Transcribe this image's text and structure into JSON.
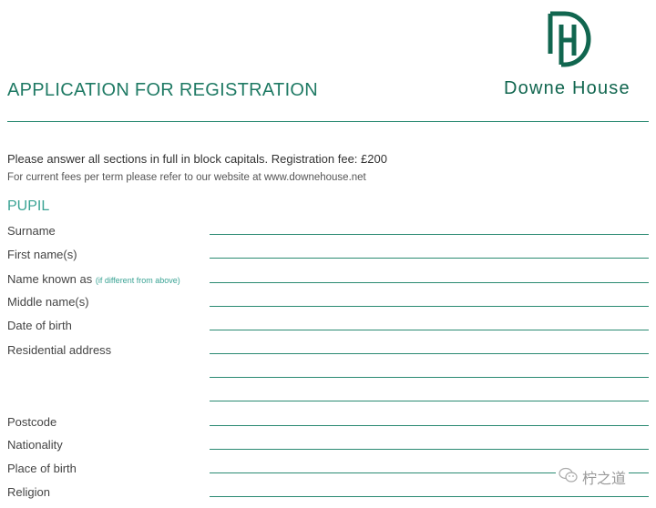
{
  "header": {
    "title": "APPLICATION FOR REGISTRATION",
    "brand_name": "Downe House",
    "logo_monogram": "DH",
    "brand_color": "#11664f",
    "accent_color": "#3aa394"
  },
  "intro": {
    "line1": "Please answer all sections in full in block capitals.  Registration fee: £200",
    "line2": "For current fees per term please refer to our website at www.downehouse.net"
  },
  "section": {
    "title": "PUPIL",
    "fields": [
      {
        "label": "Surname",
        "value": ""
      },
      {
        "label": "First name(s)",
        "value": ""
      },
      {
        "label": "Name known as",
        "note": "(if different from above)",
        "value": ""
      },
      {
        "label": "Middle name(s)",
        "value": ""
      },
      {
        "label": "Date of birth",
        "value": ""
      },
      {
        "label": "Residential address",
        "value": "",
        "extra_lines": 2
      },
      {
        "label": "Postcode",
        "value": ""
      },
      {
        "label": "Nationality",
        "value": ""
      },
      {
        "label": "Place of birth",
        "value": ""
      },
      {
        "label": "Religion",
        "value": ""
      }
    ]
  },
  "watermark": {
    "icon": "wechat-icon",
    "text": "柠之道"
  }
}
